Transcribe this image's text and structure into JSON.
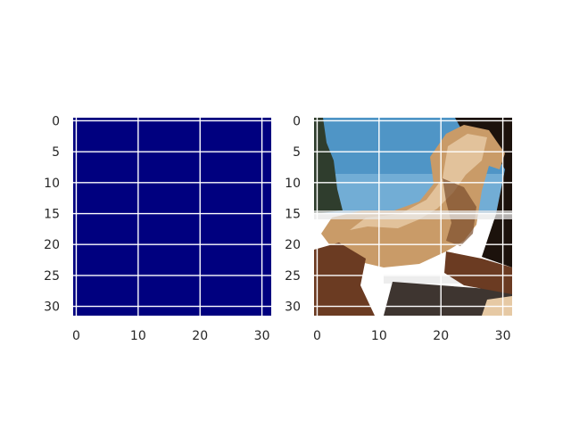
{
  "figure": {
    "background": "#ffffff",
    "grid_color": "#ffffff",
    "tick_label_color": "#262626",
    "grid": true
  },
  "panels": [
    {
      "id": "left",
      "content": "uniform colormap image",
      "fill_color": "#00007f",
      "xlim": [
        -0.5,
        31.5
      ],
      "ylim": [
        31.5,
        -0.5
      ],
      "xticks": [
        0,
        10,
        20,
        30
      ],
      "yticks": [
        0,
        5,
        10,
        15,
        20,
        25,
        30
      ],
      "xtick_labels": [
        "0",
        "10",
        "20",
        "30"
      ],
      "ytick_labels": [
        "0",
        "5",
        "10",
        "15",
        "20",
        "25",
        "30"
      ]
    },
    {
      "id": "right",
      "content": "pixelated 32x32 photo of a horse rearing against a blue sky",
      "xlim": [
        -0.5,
        31.5
      ],
      "ylim": [
        31.5,
        -0.5
      ],
      "xticks": [
        0,
        10,
        20,
        30
      ],
      "yticks": [
        0,
        5,
        10,
        15,
        20,
        25,
        30
      ],
      "xtick_labels": [
        "0",
        "10",
        "20",
        "30"
      ],
      "ytick_labels": [
        "0",
        "5",
        "10",
        "15",
        "20",
        "25",
        "30"
      ],
      "colors": {
        "sky": "#4f95c6",
        "sky_light": "#8fc1e1",
        "horse": "#c99b68",
        "horse_light": "#e6c9a4",
        "horse_dark": "#7a4d2c",
        "mane": "#1c120c",
        "trees": "#2f3d2d",
        "fence": "#e8e8e8",
        "ground": "#6b3b22"
      }
    }
  ]
}
